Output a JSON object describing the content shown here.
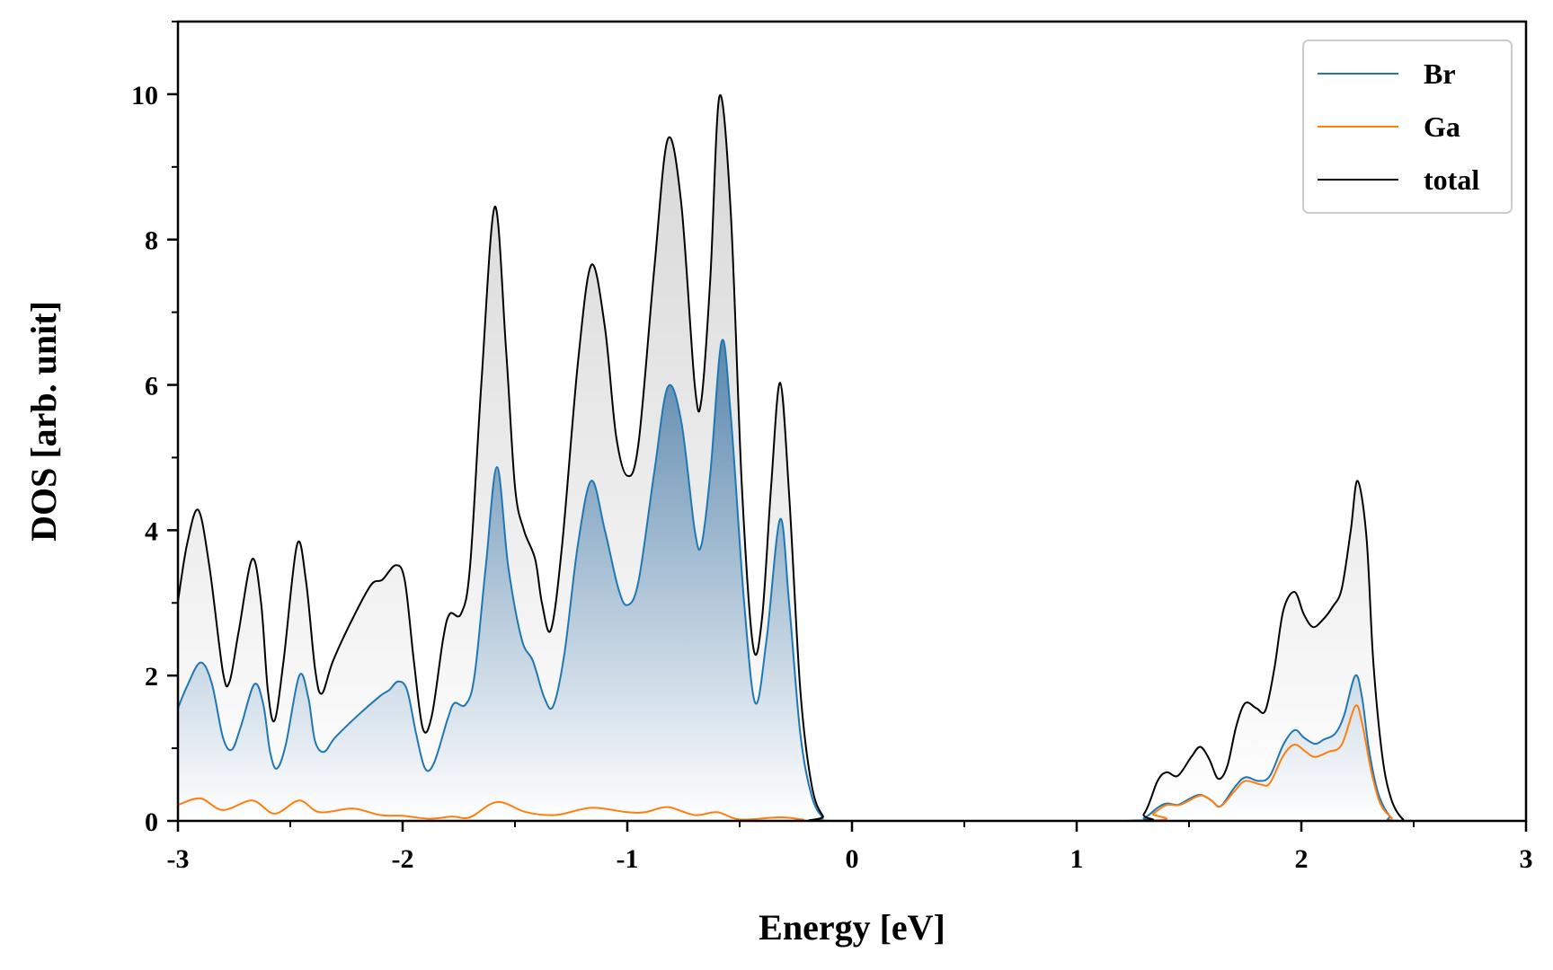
{
  "chart_data": {
    "type": "area",
    "title": "",
    "xlabel": "Energy [eV]",
    "ylabel": "DOS [arb. unit]",
    "xlim": [
      -3,
      3
    ],
    "ylim": [
      0,
      11
    ],
    "x_ticks": [
      -3,
      -2,
      -1,
      0,
      1,
      2,
      3
    ],
    "x_tick_labels": [
      "-3",
      "-2",
      "-1",
      "0",
      "1",
      "2",
      "3"
    ],
    "x_minor_step": 0.5,
    "y_ticks": [
      0,
      2,
      4,
      6,
      8,
      10
    ],
    "y_tick_labels": [
      "0",
      "2",
      "4",
      "6",
      "8",
      "10"
    ],
    "y_minor_step": 1,
    "grid": false,
    "legend_position": "top-right",
    "series": [
      {
        "name": "Br",
        "color": "#1f77b4",
        "fill": "gradient-blue",
        "points": [
          [
            -3,
            1.55
          ],
          [
            -2.96,
            1.85
          ],
          [
            -2.9,
            2.18
          ],
          [
            -2.85,
            1.9
          ],
          [
            -2.8,
            1.15
          ],
          [
            -2.76,
            0.98
          ],
          [
            -2.72,
            1.3
          ],
          [
            -2.66,
            1.88
          ],
          [
            -2.62,
            1.6
          ],
          [
            -2.59,
            0.95
          ],
          [
            -2.56,
            0.72
          ],
          [
            -2.52,
            1.05
          ],
          [
            -2.46,
            2.0
          ],
          [
            -2.42,
            1.7
          ],
          [
            -2.39,
            1.1
          ],
          [
            -2.35,
            0.95
          ],
          [
            -2.3,
            1.15
          ],
          [
            -2.2,
            1.45
          ],
          [
            -2.1,
            1.72
          ],
          [
            -2.06,
            1.8
          ],
          [
            -2.02,
            1.92
          ],
          [
            -1.98,
            1.8
          ],
          [
            -1.94,
            1.2
          ],
          [
            -1.9,
            0.72
          ],
          [
            -1.86,
            0.8
          ],
          [
            -1.8,
            1.4
          ],
          [
            -1.77,
            1.62
          ],
          [
            -1.72,
            1.6
          ],
          [
            -1.68,
            2.0
          ],
          [
            -1.63,
            3.5
          ],
          [
            -1.58,
            4.87
          ],
          [
            -1.53,
            3.5
          ],
          [
            -1.47,
            2.5
          ],
          [
            -1.42,
            2.2
          ],
          [
            -1.37,
            1.7
          ],
          [
            -1.33,
            1.58
          ],
          [
            -1.28,
            2.3
          ],
          [
            -1.22,
            3.8
          ],
          [
            -1.16,
            4.68
          ],
          [
            -1.1,
            4.0
          ],
          [
            -1.04,
            3.2
          ],
          [
            -1.0,
            2.97
          ],
          [
            -0.95,
            3.3
          ],
          [
            -0.88,
            4.8
          ],
          [
            -0.82,
            5.97
          ],
          [
            -0.76,
            5.5
          ],
          [
            -0.7,
            4.0
          ],
          [
            -0.67,
            3.8
          ],
          [
            -0.63,
            4.8
          ],
          [
            -0.58,
            6.6
          ],
          [
            -0.54,
            5.6
          ],
          [
            -0.48,
            3.0
          ],
          [
            -0.43,
            1.62
          ],
          [
            -0.38,
            2.5
          ],
          [
            -0.32,
            4.15
          ],
          [
            -0.28,
            3.0
          ],
          [
            -0.23,
            1.2
          ],
          [
            -0.18,
            0.35
          ],
          [
            -0.13,
            0.05
          ],
          [
            -0.08,
            0.0
          ],
          [
            1.22,
            0.0
          ],
          [
            1.3,
            0.04
          ],
          [
            1.36,
            0.18
          ],
          [
            1.4,
            0.24
          ],
          [
            1.45,
            0.22
          ],
          [
            1.5,
            0.3
          ],
          [
            1.55,
            0.36
          ],
          [
            1.6,
            0.28
          ],
          [
            1.64,
            0.2
          ],
          [
            1.7,
            0.45
          ],
          [
            1.75,
            0.6
          ],
          [
            1.81,
            0.55
          ],
          [
            1.86,
            0.62
          ],
          [
            1.92,
            1.05
          ],
          [
            1.97,
            1.25
          ],
          [
            2.01,
            1.15
          ],
          [
            2.06,
            1.06
          ],
          [
            2.1,
            1.12
          ],
          [
            2.15,
            1.2
          ],
          [
            2.19,
            1.45
          ],
          [
            2.24,
            2.0
          ],
          [
            2.27,
            1.7
          ],
          [
            2.3,
            1.0
          ],
          [
            2.34,
            0.4
          ],
          [
            2.39,
            0.08
          ],
          [
            2.44,
            0.0
          ],
          [
            3,
            0.0
          ]
        ]
      },
      {
        "name": "Ga",
        "color": "#ff7f0e",
        "fill": "none",
        "points": [
          [
            -3,
            0.22
          ],
          [
            -2.9,
            0.31
          ],
          [
            -2.8,
            0.15
          ],
          [
            -2.67,
            0.28
          ],
          [
            -2.57,
            0.1
          ],
          [
            -2.46,
            0.28
          ],
          [
            -2.37,
            0.12
          ],
          [
            -2.22,
            0.17
          ],
          [
            -2.1,
            0.08
          ],
          [
            -2.0,
            0.07
          ],
          [
            -1.88,
            0.03
          ],
          [
            -1.78,
            0.06
          ],
          [
            -1.7,
            0.05
          ],
          [
            -1.58,
            0.26
          ],
          [
            -1.45,
            0.12
          ],
          [
            -1.32,
            0.08
          ],
          [
            -1.16,
            0.18
          ],
          [
            -1.0,
            0.12
          ],
          [
            -0.92,
            0.12
          ],
          [
            -0.82,
            0.19
          ],
          [
            -0.7,
            0.08
          ],
          [
            -0.6,
            0.12
          ],
          [
            -0.5,
            0.02
          ],
          [
            -0.32,
            0.05
          ],
          [
            -0.22,
            0.02
          ],
          [
            -0.12,
            0.0
          ],
          [
            1.28,
            0.0
          ],
          [
            1.34,
            0.1
          ],
          [
            1.4,
            0.22
          ],
          [
            1.46,
            0.22
          ],
          [
            1.55,
            0.35
          ],
          [
            1.6,
            0.28
          ],
          [
            1.64,
            0.2
          ],
          [
            1.7,
            0.4
          ],
          [
            1.75,
            0.55
          ],
          [
            1.82,
            0.5
          ],
          [
            1.86,
            0.52
          ],
          [
            1.92,
            0.9
          ],
          [
            1.97,
            1.05
          ],
          [
            2.02,
            0.95
          ],
          [
            2.06,
            0.88
          ],
          [
            2.12,
            0.95
          ],
          [
            2.18,
            1.05
          ],
          [
            2.24,
            1.58
          ],
          [
            2.27,
            1.35
          ],
          [
            2.31,
            0.7
          ],
          [
            2.35,
            0.25
          ],
          [
            2.4,
            0.05
          ],
          [
            2.45,
            0.0
          ],
          [
            3,
            0.0
          ]
        ]
      },
      {
        "name": "total",
        "color": "#000000",
        "fill": "gradient-gray",
        "points": [
          [
            -3,
            3.02
          ],
          [
            -2.96,
            3.8
          ],
          [
            -2.91,
            4.28
          ],
          [
            -2.86,
            3.5
          ],
          [
            -2.8,
            2.05
          ],
          [
            -2.77,
            1.92
          ],
          [
            -2.73,
            2.6
          ],
          [
            -2.67,
            3.6
          ],
          [
            -2.63,
            3.0
          ],
          [
            -2.6,
            1.8
          ],
          [
            -2.57,
            1.38
          ],
          [
            -2.53,
            2.2
          ],
          [
            -2.47,
            3.8
          ],
          [
            -2.43,
            3.3
          ],
          [
            -2.39,
            2.1
          ],
          [
            -2.36,
            1.75
          ],
          [
            -2.31,
            2.2
          ],
          [
            -2.22,
            2.8
          ],
          [
            -2.14,
            3.25
          ],
          [
            -2.09,
            3.32
          ],
          [
            -2.03,
            3.52
          ],
          [
            -1.99,
            3.3
          ],
          [
            -1.95,
            2.2
          ],
          [
            -1.91,
            1.27
          ],
          [
            -1.87,
            1.45
          ],
          [
            -1.82,
            2.5
          ],
          [
            -1.79,
            2.85
          ],
          [
            -1.74,
            2.85
          ],
          [
            -1.7,
            3.5
          ],
          [
            -1.65,
            6.0
          ],
          [
            -1.59,
            8.45
          ],
          [
            -1.54,
            6.5
          ],
          [
            -1.5,
            4.6
          ],
          [
            -1.46,
            4.0
          ],
          [
            -1.41,
            3.6
          ],
          [
            -1.38,
            3.0
          ],
          [
            -1.34,
            2.63
          ],
          [
            -1.29,
            3.8
          ],
          [
            -1.22,
            6.3
          ],
          [
            -1.16,
            7.65
          ],
          [
            -1.1,
            6.8
          ],
          [
            -1.05,
            5.3
          ],
          [
            -1.0,
            4.75
          ],
          [
            -0.95,
            5.2
          ],
          [
            -0.88,
            7.6
          ],
          [
            -0.82,
            9.38
          ],
          [
            -0.76,
            8.5
          ],
          [
            -0.7,
            6.0
          ],
          [
            -0.67,
            5.8
          ],
          [
            -0.63,
            7.5
          ],
          [
            -0.59,
            9.97
          ],
          [
            -0.54,
            8.4
          ],
          [
            -0.49,
            4.6
          ],
          [
            -0.44,
            2.4
          ],
          [
            -0.4,
            2.8
          ],
          [
            -0.36,
            4.6
          ],
          [
            -0.32,
            6.03
          ],
          [
            -0.28,
            4.5
          ],
          [
            -0.23,
            1.8
          ],
          [
            -0.18,
            0.5
          ],
          [
            -0.13,
            0.07
          ],
          [
            -0.08,
            0.0
          ],
          [
            1.22,
            0.0
          ],
          [
            1.3,
            0.1
          ],
          [
            1.36,
            0.55
          ],
          [
            1.4,
            0.67
          ],
          [
            1.45,
            0.62
          ],
          [
            1.51,
            0.88
          ],
          [
            1.55,
            1.02
          ],
          [
            1.59,
            0.85
          ],
          [
            1.63,
            0.58
          ],
          [
            1.67,
            0.75
          ],
          [
            1.71,
            1.3
          ],
          [
            1.75,
            1.62
          ],
          [
            1.8,
            1.55
          ],
          [
            1.84,
            1.52
          ],
          [
            1.88,
            2.1
          ],
          [
            1.92,
            2.9
          ],
          [
            1.97,
            3.15
          ],
          [
            2.01,
            2.85
          ],
          [
            2.05,
            2.67
          ],
          [
            2.09,
            2.75
          ],
          [
            2.14,
            2.95
          ],
          [
            2.18,
            3.2
          ],
          [
            2.22,
            4.0
          ],
          [
            2.25,
            4.68
          ],
          [
            2.29,
            3.9
          ],
          [
            2.32,
            2.2
          ],
          [
            2.36,
            0.9
          ],
          [
            2.4,
            0.3
          ],
          [
            2.45,
            0.03
          ],
          [
            2.5,
            0.0
          ],
          [
            3,
            0.0
          ]
        ]
      }
    ]
  }
}
